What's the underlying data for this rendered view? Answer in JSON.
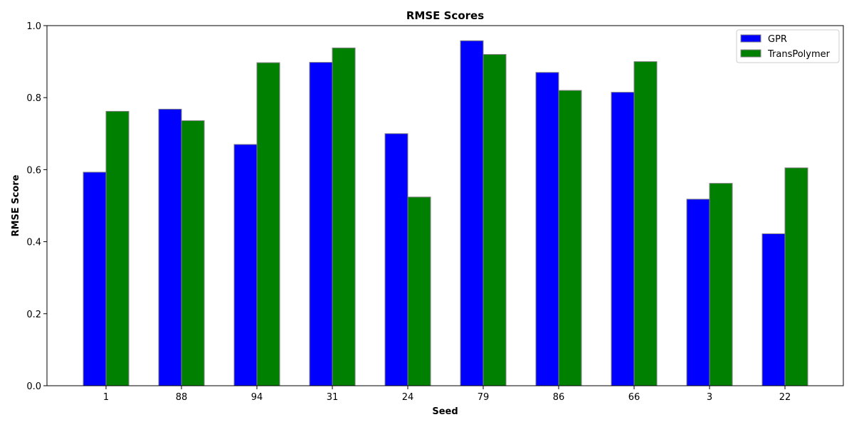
{
  "chart_data": {
    "type": "bar",
    "title": "RMSE Scores",
    "xlabel": "Seed",
    "ylabel": "RMSE Score",
    "categories": [
      "1",
      "88",
      "94",
      "31",
      "24",
      "79",
      "86",
      "66",
      "3",
      "22"
    ],
    "series": [
      {
        "name": "GPR",
        "color": "#0000ff",
        "values": [
          0.593,
          0.768,
          0.67,
          0.898,
          0.7,
          0.958,
          0.87,
          0.815,
          0.518,
          0.422
        ]
      },
      {
        "name": "TransPolymer",
        "color": "#008000",
        "values": [
          0.762,
          0.736,
          0.897,
          0.938,
          0.524,
          0.92,
          0.82,
          0.9,
          0.562,
          0.605
        ]
      }
    ],
    "ylim": [
      0,
      1.0
    ],
    "yticks": [
      0.0,
      0.2,
      0.4,
      0.6,
      0.8,
      1.0
    ],
    "ytick_labels": [
      "0.0",
      "0.2",
      "0.4",
      "0.6",
      "0.8",
      "1.0"
    ],
    "bar_edge_color": "#808080",
    "grid": false,
    "legend_position": "top-right"
  }
}
